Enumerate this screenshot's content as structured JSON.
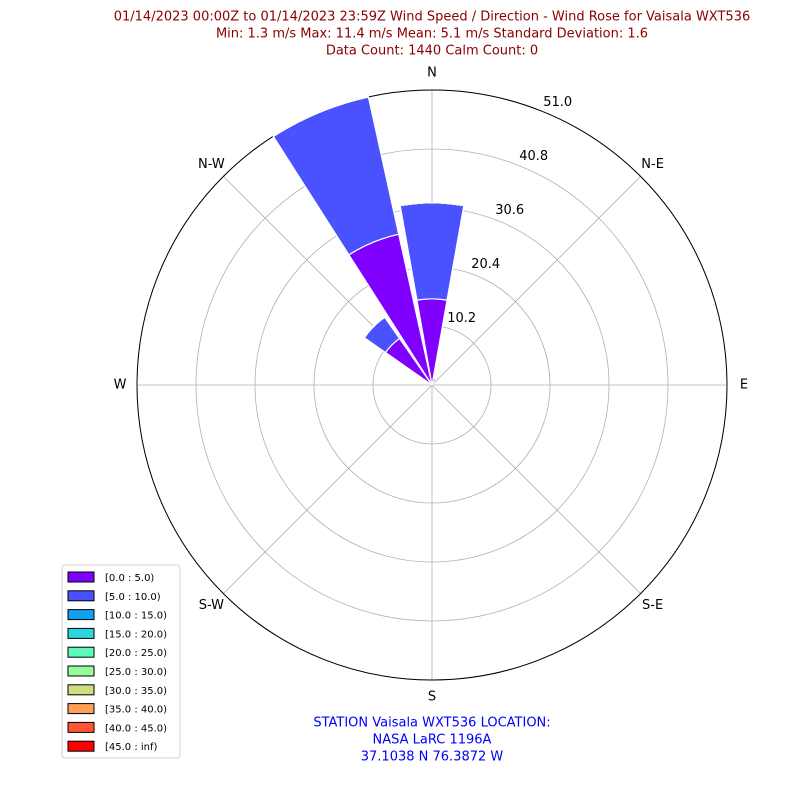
{
  "chart_data": {
    "type": "wind_rose",
    "title": [
      "01/14/2023 00:00Z to 01/14/2023 23:59Z Wind Speed / Direction - Wind Rose for Vaisala WXT536",
      "Min: 1.3 m/s   Max: 11.4 m/s   Mean: 5.1 m/s  Standard Deviation: 1.6",
      "Data Count: 1440  Calm Count:  0"
    ],
    "footer": [
      "STATION Vaisala WXT536 LOCATION:",
      "NASA LaRC 1196A",
      "37.1038 N 76.3872 W"
    ],
    "directions": [
      "N",
      null,
      "N-E",
      null,
      "E",
      null,
      "S-E",
      null,
      "S",
      null,
      "S-W",
      null,
      "W",
      null,
      "N-W",
      null
    ],
    "rlim": [
      0,
      51
    ],
    "rticks": [
      10.2,
      20.4,
      30.6,
      40.8,
      {
        "value": 51,
        "label": "51.0"
      }
    ],
    "grid": true,
    "legend": "lower left",
    "series": [
      {
        "name": "[0.0 : 5.0)",
        "color": "#8000ff",
        "values": [
          14.9,
          1.2,
          0,
          0,
          0,
          0,
          0,
          0,
          0,
          0,
          0,
          0,
          0,
          0,
          9.8,
          26.7
        ]
      },
      {
        "name": "[5.0 : 10.0)",
        "color": "#4a52ff",
        "values": [
          16.6,
          0,
          0,
          0,
          0,
          0,
          0,
          0,
          0,
          0,
          0,
          0,
          0,
          0,
          4.5,
          24.3
        ]
      },
      {
        "name": "[10.0 : 15.0)",
        "color": "#10a0f0",
        "values": [
          0,
          0,
          0,
          0,
          0,
          0,
          0,
          0,
          0,
          0,
          0,
          0,
          0,
          0,
          0,
          0
        ]
      },
      {
        "name": "[15.0 : 20.0)",
        "color": "#2ad8dc",
        "values": [
          0,
          0,
          0,
          0,
          0,
          0,
          0,
          0,
          0,
          0,
          0,
          0,
          0,
          0,
          0,
          0
        ]
      },
      {
        "name": "[20.0 : 25.0)",
        "color": "#5efbbe",
        "values": [
          0,
          0,
          0,
          0,
          0,
          0,
          0,
          0,
          0,
          0,
          0,
          0,
          0,
          0,
          0,
          0
        ]
      },
      {
        "name": "[25.0 : 30.0)",
        "color": "#96fb9a",
        "values": [
          0,
          0,
          0,
          0,
          0,
          0,
          0,
          0,
          0,
          0,
          0,
          0,
          0,
          0,
          0,
          0
        ]
      },
      {
        "name": "[30.0 : 35.0)",
        "color": "#cedd80",
        "values": [
          0,
          0,
          0,
          0,
          0,
          0,
          0,
          0,
          0,
          0,
          0,
          0,
          0,
          0,
          0,
          0
        ]
      },
      {
        "name": "[35.0 : 40.0)",
        "color": "#ffa05a",
        "values": [
          0,
          0,
          0,
          0,
          0,
          0,
          0,
          0,
          0,
          0,
          0,
          0,
          0,
          0,
          0,
          0
        ]
      },
      {
        "name": "[40.0 : 45.0)",
        "color": "#ff5533",
        "values": [
          0,
          0,
          0,
          0,
          0,
          0,
          0,
          0,
          0,
          0,
          0,
          0,
          0,
          0,
          0,
          0
        ]
      },
      {
        "name": "[45.0 : inf)",
        "color": "#ff0000",
        "values": [
          0,
          0,
          0,
          0,
          0,
          0,
          0,
          0,
          0,
          0,
          0,
          0,
          0,
          0,
          0,
          0
        ]
      }
    ]
  }
}
